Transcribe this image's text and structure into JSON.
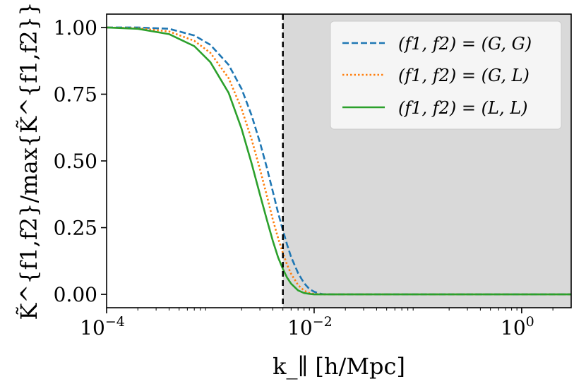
{
  "chart_data": {
    "type": "line",
    "x_scale": "log",
    "xlim": [
      0.0001,
      3.0
    ],
    "ylim": [
      -0.05,
      1.05
    ],
    "xlabel": "k_∥ [h/Mpc]",
    "ylabel": "K̃^{f1,f2}/max{K̃^{f1,f2}}",
    "x_ticks": [
      {
        "value": 0.0001,
        "base": "10",
        "exp": "−4"
      },
      {
        "value": 0.01,
        "base": "10",
        "exp": "−2"
      },
      {
        "value": 1,
        "base": "10",
        "exp": "0"
      }
    ],
    "y_ticks": [
      {
        "value": 0.0,
        "label": "0.00"
      },
      {
        "value": 0.25,
        "label": "0.25"
      },
      {
        "value": 0.5,
        "label": "0.50"
      },
      {
        "value": 0.75,
        "label": "0.75"
      },
      {
        "value": 1.0,
        "label": "1.00"
      }
    ],
    "vline_x": 0.005,
    "shaded_region": {
      "x_start": 0.005,
      "x_end": 3.0
    },
    "grid": false,
    "legend_position": "upper right",
    "series": [
      {
        "name": "(f1, f2) = (G, G)",
        "color": "#1f77b4",
        "style": "dashed",
        "x": [
          0.0001,
          0.0002,
          0.0004,
          0.0007,
          0.001,
          0.0015,
          0.002,
          0.0025,
          0.003,
          0.0035,
          0.004,
          0.0045,
          0.005,
          0.0055,
          0.006,
          0.007,
          0.008,
          0.009,
          0.01,
          0.011,
          0.012,
          0.015,
          0.02,
          0.05,
          0.1,
          1,
          3
        ],
        "y": [
          1.0,
          1.0,
          0.995,
          0.97,
          0.935,
          0.86,
          0.77,
          0.67,
          0.57,
          0.475,
          0.385,
          0.305,
          0.24,
          0.185,
          0.14,
          0.08,
          0.042,
          0.02,
          0.01,
          0.004,
          0.001,
          0.0,
          0.0,
          0.0,
          0.0,
          0.0,
          0.0
        ]
      },
      {
        "name": "(f1, f2) = (G, L)",
        "color": "#ff7f0e",
        "style": "dotted",
        "x": [
          0.0001,
          0.0002,
          0.0004,
          0.0007,
          0.001,
          0.0015,
          0.002,
          0.0025,
          0.003,
          0.0035,
          0.004,
          0.0045,
          0.005,
          0.0055,
          0.006,
          0.007,
          0.008,
          0.009,
          0.01,
          0.012,
          0.015,
          0.02,
          0.05,
          0.1,
          1,
          3
        ],
        "y": [
          1.0,
          0.997,
          0.985,
          0.95,
          0.905,
          0.81,
          0.695,
          0.58,
          0.47,
          0.37,
          0.28,
          0.21,
          0.155,
          0.11,
          0.077,
          0.035,
          0.014,
          0.005,
          0.002,
          0.0,
          0.0,
          0.0,
          0.0,
          0.0,
          0.0,
          0.0
        ]
      },
      {
        "name": "(f1, f2) = (L, L)",
        "color": "#2ca02c",
        "style": "solid",
        "x": [
          0.0001,
          0.0002,
          0.0004,
          0.0007,
          0.001,
          0.0015,
          0.002,
          0.0025,
          0.003,
          0.0035,
          0.004,
          0.0045,
          0.005,
          0.0055,
          0.006,
          0.007,
          0.008,
          0.009,
          0.01,
          0.012,
          0.015,
          0.02,
          0.05,
          0.1,
          1,
          3
        ],
        "y": [
          1.0,
          0.995,
          0.975,
          0.93,
          0.87,
          0.755,
          0.62,
          0.49,
          0.375,
          0.28,
          0.2,
          0.138,
          0.095,
          0.062,
          0.04,
          0.015,
          0.005,
          0.002,
          0.0,
          0.0,
          0.0,
          0.0,
          0.0,
          0.0,
          0.0,
          0.0
        ]
      }
    ]
  }
}
